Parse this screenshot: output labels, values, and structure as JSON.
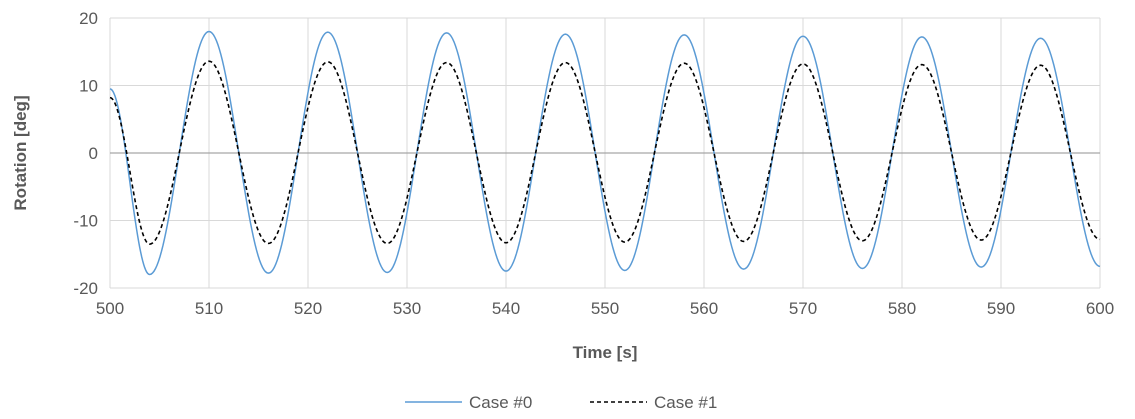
{
  "chart_data": {
    "type": "line",
    "title": "",
    "xlabel": "Time [s]",
    "ylabel": "Rotation [deg]",
    "xlim": [
      500,
      600
    ],
    "ylim": [
      -20,
      20
    ],
    "x_ticks": [
      500,
      510,
      520,
      530,
      540,
      550,
      560,
      570,
      580,
      590,
      600
    ],
    "y_ticks": [
      -20,
      -10,
      0,
      10,
      20
    ],
    "grid": "vertical and horizontal major gridlines",
    "legend_position": "bottom",
    "series": [
      {
        "name": "Case #0",
        "color": "#5b9bd5",
        "line_style": "solid",
        "period": 12.0,
        "points": [
          [
            500,
            9.5
          ],
          [
            504,
            -18
          ],
          [
            510,
            18
          ],
          [
            516,
            -17.8
          ],
          [
            522,
            17.9
          ],
          [
            528,
            -17.7
          ],
          [
            534,
            17.8
          ],
          [
            540,
            -17.5
          ],
          [
            546,
            17.6
          ],
          [
            552,
            -17.4
          ],
          [
            558,
            17.5
          ],
          [
            564,
            -17.2
          ],
          [
            570,
            17.3
          ],
          [
            576,
            -17.1
          ],
          [
            582,
            17.2
          ],
          [
            588,
            -16.9
          ],
          [
            594,
            17.0
          ],
          [
            600,
            -16.8
          ]
        ]
      },
      {
        "name": "Case #1",
        "color": "#000000",
        "line_style": "dashed",
        "period": 12.0,
        "points": [
          [
            500,
            8.2
          ],
          [
            504,
            -13.5
          ],
          [
            510,
            13.6
          ],
          [
            516,
            -13.4
          ],
          [
            522,
            13.5
          ],
          [
            528,
            -13.4
          ],
          [
            534,
            13.4
          ],
          [
            540,
            -13.3
          ],
          [
            546,
            13.4
          ],
          [
            552,
            -13.2
          ],
          [
            558,
            13.3
          ],
          [
            564,
            -13.1
          ],
          [
            570,
            13.2
          ],
          [
            576,
            -13.0
          ],
          [
            582,
            13.1
          ],
          [
            588,
            -12.9
          ],
          [
            594,
            13.0
          ],
          [
            600,
            -12.8
          ]
        ]
      }
    ]
  }
}
